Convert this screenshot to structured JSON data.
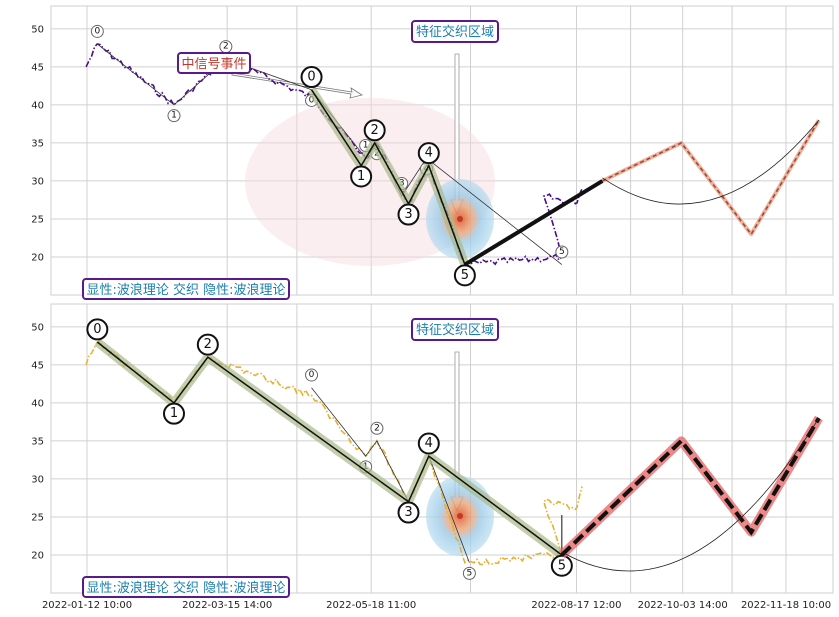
{
  "chart_data": [
    {
      "type": "line",
      "panel": "top",
      "ylim": [
        15,
        53
      ],
      "yticks": [
        20,
        25,
        30,
        35,
        40,
        45,
        50
      ],
      "grid": true,
      "price_color": "#4b0a8f",
      "price_style": "dash-dot",
      "annotations": {
        "feature_box": "特征交织区域",
        "event_box": "中信号事件",
        "bottom_box": "显性:波浪理论 交织 隐性:波浪理论"
      },
      "waves_small": [
        {
          "label": "0",
          "x": "2022-01-17",
          "y": 48
        },
        {
          "label": "1",
          "x": "2022-02-20",
          "y": 40
        },
        {
          "label": "2",
          "x": "2022-03-15",
          "y": 46
        },
        {
          "label": "0",
          "x": "2022-04-22",
          "y": 42
        },
        {
          "label": "1",
          "x": "2022-05-16",
          "y": 33
        },
        {
          "label": "2",
          "x": "2022-05-21",
          "y": 35
        },
        {
          "label": "3",
          "x": "2022-06-01",
          "y": 28
        },
        {
          "label": "4",
          "x": "2022-06-12",
          "y": 33
        },
        {
          "label": "5",
          "x": "2022-08-11",
          "y": 19
        }
      ],
      "waves_large": [
        {
          "label": "0",
          "x": "2022-04-22",
          "y": 42
        },
        {
          "label": "1",
          "x": "2022-05-14",
          "y": 32
        },
        {
          "label": "2",
          "x": "2022-05-20",
          "y": 35
        },
        {
          "label": "3",
          "x": "2022-06-04",
          "y": 27
        },
        {
          "label": "4",
          "x": "2022-06-13",
          "y": 32
        },
        {
          "label": "5",
          "x": "2022-06-29",
          "y": 19
        }
      ],
      "projection": [
        {
          "x": "2022-08-29",
          "y": 30
        },
        {
          "x": "2022-10-03",
          "y": 35
        },
        {
          "x": "2022-11-03",
          "y": 23
        },
        {
          "x": "2022-12-03",
          "y": 38
        }
      ]
    },
    {
      "type": "line",
      "panel": "bottom",
      "ylim": [
        15,
        53
      ],
      "yticks": [
        20,
        25,
        30,
        35,
        40,
        45,
        50
      ],
      "grid": true,
      "price_color": "#e8b030",
      "price_style": "dash-dot",
      "annotations": {
        "feature_box": "特征交织区域",
        "bottom_box": "显性:波浪理论 交织 隐性:波浪理论"
      },
      "waves_large": [
        {
          "label": "0",
          "x": "2022-01-17",
          "y": 48
        },
        {
          "label": "1",
          "x": "2022-02-20",
          "y": 40
        },
        {
          "label": "2",
          "x": "2022-03-07",
          "y": 46
        },
        {
          "label": "3",
          "x": "2022-06-04",
          "y": 27
        },
        {
          "label": "4",
          "x": "2022-06-13",
          "y": 33
        },
        {
          "label": "5",
          "x": "2022-08-11",
          "y": 20
        }
      ],
      "waves_small": [
        {
          "label": "0",
          "x": "2022-04-22",
          "y": 42
        },
        {
          "label": "1",
          "x": "2022-05-16",
          "y": 33
        },
        {
          "label": "2",
          "x": "2022-05-21",
          "y": 35
        },
        {
          "label": "3",
          "x": "2022-06-04",
          "y": 27
        },
        {
          "label": "4",
          "x": "2022-06-13",
          "y": 33
        },
        {
          "label": "5",
          "x": "2022-07-01",
          "y": 19
        }
      ],
      "projection": [
        {
          "x": "2022-08-11",
          "y": 20
        },
        {
          "x": "2022-10-03",
          "y": 35
        },
        {
          "x": "2022-11-03",
          "y": 23
        },
        {
          "x": "2022-12-03",
          "y": 38
        }
      ]
    }
  ],
  "x_axis": {
    "ticks": [
      "2022-01-12 10:00",
      "2022-03-15 14:00",
      "2022-05-18 11:00",
      "2022-08-17 12:00",
      "2022-10-03 14:00",
      "2022-11-18 10:00"
    ]
  }
}
